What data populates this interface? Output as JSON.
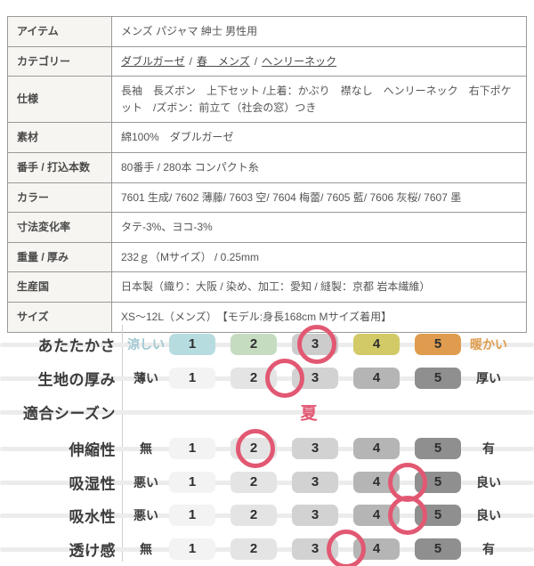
{
  "table": {
    "rows": [
      {
        "label": "アイテム",
        "value": "メンズ パジャマ 紳士 男性用"
      },
      {
        "label": "カテゴリー",
        "links": [
          "ダブルガーゼ",
          "春　メンズ",
          "ヘンリーネック"
        ],
        "separator": "/"
      },
      {
        "label": "仕様",
        "value": "長袖　長ズボン　上下セット /上着：かぶり　襟なし　ヘンリーネック　右下ポケット　/ズボン：前立て（社会の窓）つき"
      },
      {
        "label": "素材",
        "value": "綿100%　ダブルガーゼ"
      },
      {
        "label": "番手 / 打込本数",
        "value": "80番手 / 280本 コンパクト糸"
      },
      {
        "label": "カラー",
        "value": "7601 生成/ 7602 薄藤/ 7603 空/ 7604 梅蕾/ 7605 藍/ 7606 灰桜/ 7607 墨"
      },
      {
        "label": "寸法変化率",
        "value": "タテ-3%、ヨコ-3%"
      },
      {
        "label": "重量 / 厚み",
        "value": "232ｇ（Mサイズ） / 0.25mm"
      },
      {
        "label": "生産国",
        "value": "日本製（織り：大阪 / 染め、加工：愛知 / 縫製：京都 岩本繊維）"
      },
      {
        "label": "サイズ",
        "value": "XS～12L（メンズ）　【モデル:身長168cm Mサイズ着用】"
      }
    ]
  },
  "chart": {
    "numbers": [
      "1",
      "2",
      "3",
      "4",
      "5"
    ],
    "palette_warmth": [
      "#b7dce0",
      "#c5dcc1",
      "#cccccc",
      "#d2ca67",
      "#df9c4e"
    ],
    "palette_gray": [
      "#f3f3f3",
      "#e4e4e4",
      "#d2d2d2",
      "#b5b5b5",
      "#8f8f8f"
    ],
    "accent_pink": "#e25872",
    "end_colors": {
      "cool": "#9fc8d2",
      "warm": "#df9c4e"
    }
  },
  "chart_data": {
    "type": "rating-scale",
    "scale": [
      1,
      2,
      3,
      4,
      5
    ],
    "rows": [
      {
        "label": "あたたかさ",
        "min_label": "涼しい",
        "max_label": "暖かい",
        "value": 3
      },
      {
        "label": "生地の厚み",
        "min_label": "薄い",
        "max_label": "厚い",
        "value": 2.5
      },
      {
        "label": "適合シーズン",
        "value": "夏"
      },
      {
        "label": "伸縮性",
        "min_label": "無",
        "max_label": "有",
        "value": 2
      },
      {
        "label": "吸湿性",
        "min_label": "悪い",
        "max_label": "良い",
        "value": 4.5
      },
      {
        "label": "吸水性",
        "min_label": "悪い",
        "max_label": "良い",
        "value": 4.5
      },
      {
        "label": "透け感",
        "min_label": "無",
        "max_label": "有",
        "value": 3.5
      }
    ]
  }
}
